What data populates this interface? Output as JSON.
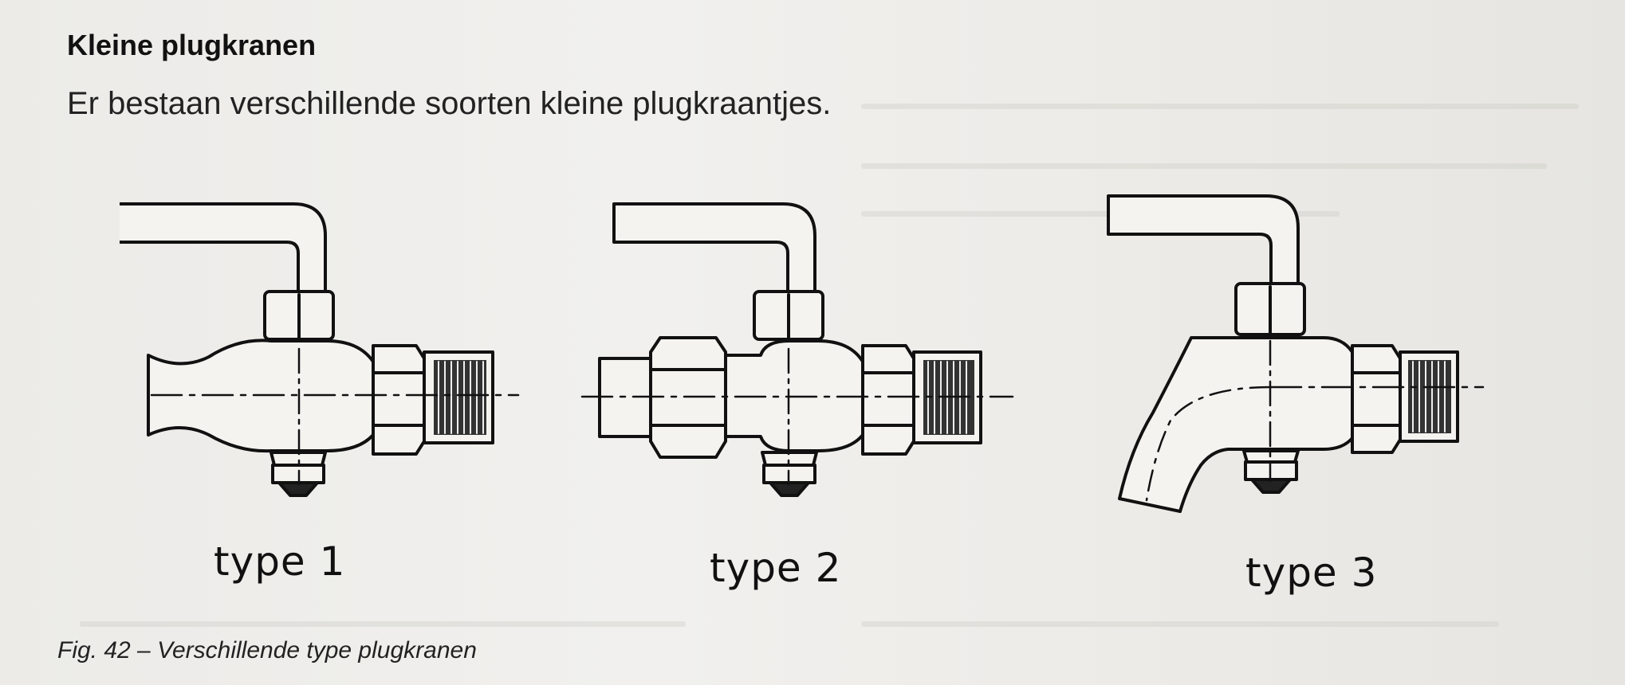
{
  "heading": "Kleine plugkranen",
  "intro": "Er bestaan verschillende soorten kleine plugkraantjes.",
  "types": [
    {
      "label": "type 1",
      "icon": "plug-tap-straight-icon"
    },
    {
      "label": "type 2",
      "icon": "plug-tap-coupling-icon"
    },
    {
      "label": "type 3",
      "icon": "plug-tap-curved-spout-icon"
    }
  ],
  "caption": "Fig. 42 – Verschillende type plugkranen"
}
